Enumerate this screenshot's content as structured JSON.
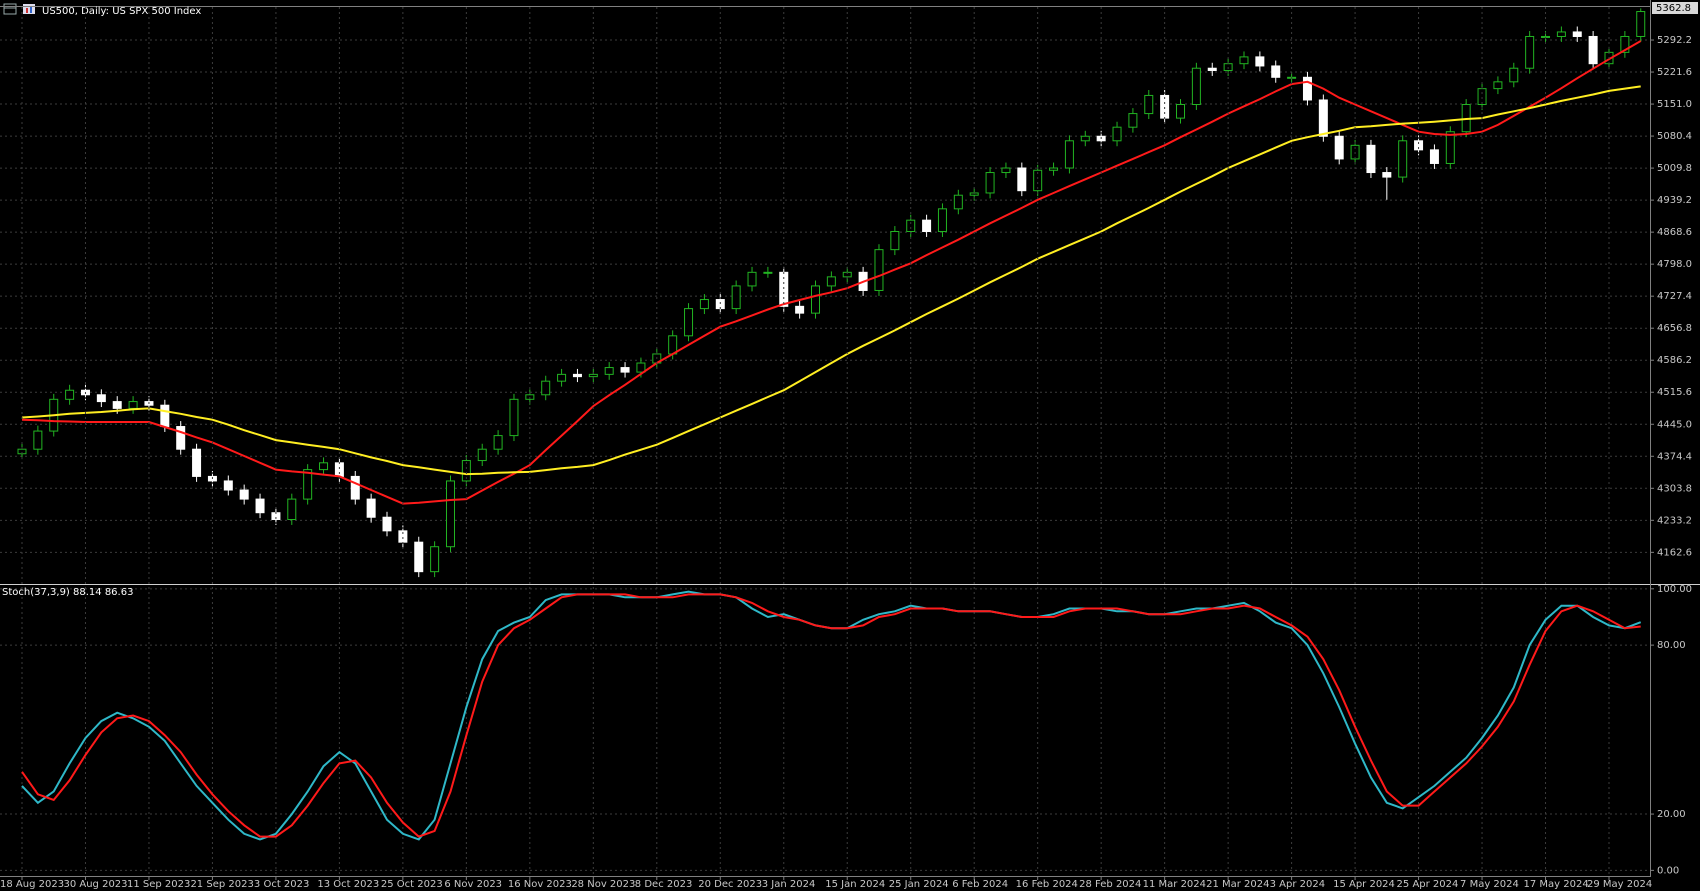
{
  "chart_data": [
    {
      "type": "candlestick",
      "title": "US500, Daily:  US SPX 500 Index",
      "grid": true,
      "up_color": "#22b422",
      "down_color": "#ffffff",
      "last_price": 5362.8,
      "ylim": [
        4095,
        5365
      ],
      "yticks": [
        4162.6,
        4233.2,
        4303.8,
        4374.4,
        {
          "value": 4445,
          "label": "4445.0"
        },
        4515.6,
        4586.2,
        4656.8,
        4727.4,
        {
          "value": 4798,
          "label": "4798.0"
        },
        4868.6,
        4939.2,
        5009.8,
        5080.4,
        {
          "value": 5151,
          "label": "5151.0"
        },
        5221.6,
        5292.2
      ],
      "open": [
        4380,
        4390,
        4430,
        4500,
        4520,
        4510,
        4495,
        4480,
        4495,
        4487,
        4440,
        4390,
        4330,
        4320,
        4300,
        4280,
        4250,
        4235,
        4280,
        4345,
        4360,
        4330,
        4280,
        4240,
        4210,
        4185,
        4120,
        4175,
        4320,
        4365,
        4390,
        4420,
        4500,
        4510,
        4540,
        4555,
        4550,
        4555,
        4570,
        4560,
        4580,
        4600,
        4640,
        4700,
        4720,
        4700,
        4750,
        4780,
        4780,
        4705,
        4690,
        4750,
        4770,
        4780,
        4740,
        4830,
        4870,
        4895,
        4870,
        4920,
        4950,
        4955,
        5000,
        5010,
        4960,
        5005,
        5010,
        5070,
        5080,
        5070,
        5100,
        5130,
        5170,
        5120,
        5150,
        5230,
        5225,
        5240,
        5255,
        5235,
        5210,
        5210,
        5160,
        5080,
        5030,
        5060,
        5000,
        4990,
        5070,
        5050,
        5020,
        5090,
        5150,
        5185,
        5200,
        5230,
        5300,
        5300,
        5310,
        5300,
        5240,
        5265,
        5300
      ],
      "high": [
        4402,
        4442,
        4512,
        4532,
        4532,
        4522,
        4507,
        4507,
        4507,
        4499,
        4452,
        4402,
        4342,
        4332,
        4312,
        4292,
        4262,
        4292,
        4357,
        4372,
        4372,
        4342,
        4292,
        4252,
        4222,
        4197,
        4187,
        4332,
        4377,
        4402,
        4432,
        4512,
        4522,
        4552,
        4567,
        4567,
        4567,
        4582,
        4582,
        4592,
        4612,
        4652,
        4712,
        4732,
        4732,
        4762,
        4792,
        4792,
        4792,
        4717,
        4762,
        4782,
        4792,
        4792,
        4842,
        4882,
        4907,
        4907,
        4932,
        4962,
        4967,
        5012,
        5022,
        5022,
        5017,
        5022,
        5082,
        5092,
        5092,
        5112,
        5142,
        5182,
        5182,
        5162,
        5242,
        5242,
        5252,
        5267,
        5267,
        5247,
        5222,
        5222,
        5172,
        5092,
        5072,
        5072,
        5012,
        5082,
        5082,
        5062,
        5102,
        5162,
        5197,
        5212,
        5242,
        5312,
        5312,
        5322,
        5322,
        5312,
        5277,
        5312,
        5362
      ],
      "low": [
        4368,
        4378,
        4418,
        4488,
        4498,
        4483,
        4468,
        4468,
        4475,
        4428,
        4378,
        4318,
        4308,
        4288,
        4268,
        4238,
        4223,
        4223,
        4268,
        4333,
        4318,
        4268,
        4228,
        4198,
        4173,
        4108,
        4108,
        4163,
        4308,
        4353,
        4378,
        4408,
        4488,
        4498,
        4528,
        4538,
        4538,
        4543,
        4548,
        4548,
        4568,
        4588,
        4628,
        4688,
        4688,
        4688,
        4738,
        4768,
        4693,
        4678,
        4678,
        4738,
        4758,
        4728,
        4728,
        4818,
        4858,
        4858,
        4858,
        4908,
        4938,
        4943,
        4988,
        4948,
        4948,
        4993,
        4998,
        5058,
        5058,
        5058,
        5088,
        5118,
        5108,
        5108,
        5138,
        5213,
        5213,
        5228,
        5223,
        5198,
        5198,
        5148,
        5068,
        5018,
        5018,
        4988,
        4940,
        4978,
        5038,
        5008,
        5008,
        5078,
        5138,
        5173,
        5188,
        5218,
        5288,
        5288,
        5288,
        5228,
        5228,
        5253,
        5288
      ],
      "close": [
        4390,
        4430,
        4500,
        4520,
        4510,
        4495,
        4480,
        4495,
        4487,
        4440,
        4390,
        4330,
        4320,
        4300,
        4280,
        4250,
        4235,
        4280,
        4345,
        4360,
        4330,
        4280,
        4240,
        4210,
        4185,
        4120,
        4175,
        4320,
        4365,
        4390,
        4420,
        4500,
        4510,
        4540,
        4555,
        4550,
        4555,
        4570,
        4560,
        4580,
        4600,
        4640,
        4700,
        4720,
        4700,
        4750,
        4780,
        4780,
        4705,
        4690,
        4750,
        4770,
        4780,
        4740,
        4830,
        4870,
        4895,
        4870,
        4920,
        4950,
        4955,
        5000,
        5010,
        4960,
        5005,
        5010,
        5070,
        5080,
        5070,
        5100,
        5130,
        5170,
        5120,
        5150,
        5230,
        5225,
        5240,
        5255,
        5235,
        5210,
        5210,
        5160,
        5080,
        5030,
        5060,
        5000,
        4990,
        5070,
        5050,
        5020,
        5090,
        5150,
        5185,
        5200,
        5230,
        5300,
        5300,
        5310,
        5300,
        5240,
        5265,
        5300,
        5355
      ],
      "series": [
        {
          "color": "#ff1a1a",
          "values": [
            4455,
            4454,
            4452,
            4451,
            4450,
            4450,
            4450,
            4450,
            4450,
            4439,
            4428,
            4416,
            4405,
            4390,
            4375,
            4360,
            4345,
            4341,
            4338,
            4334,
            4330,
            4315,
            4300,
            4285,
            4270,
            4272,
            4275,
            4278,
            4280,
            4299,
            4318,
            4336,
            4355,
            4388,
            4420,
            4452,
            4485,
            4509,
            4532,
            4556,
            4580,
            4600,
            4620,
            4640,
            4660,
            4672,
            4685,
            4698,
            4710,
            4719,
            4728,
            4736,
            4745,
            4759,
            4772,
            4786,
            4800,
            4818,
            4835,
            4852,
            4870,
            4888,
            4905,
            4922,
            4940,
            4955,
            4970,
            4985,
            5000,
            5015,
            5030,
            5045,
            5060,
            5078,
            5095,
            5112,
            5130,
            5146,
            5162,
            5179,
            5195,
            5200,
            5185,
            5165,
            5150,
            5135,
            5120,
            5105,
            5090,
            5085,
            5083,
            5085,
            5090,
            5105,
            5125,
            5145,
            5165,
            5186,
            5208,
            5229,
            5250,
            5270,
            5290
          ]
        },
        {
          "color": "#ffee22",
          "values": [
            4460,
            4462,
            4465,
            4468,
            4470,
            4472,
            4475,
            4478,
            4480,
            4474,
            4468,
            4461,
            4455,
            4444,
            4432,
            4421,
            4410,
            4405,
            4400,
            4395,
            4390,
            4381,
            4372,
            4364,
            4355,
            4350,
            4345,
            4340,
            4335,
            4336,
            4338,
            4339,
            4340,
            4344,
            4348,
            4351,
            4355,
            4366,
            4378,
            4389,
            4400,
            4415,
            4430,
            4445,
            4460,
            4475,
            4490,
            4505,
            4520,
            4540,
            4560,
            4580,
            4600,
            4618,
            4635,
            4652,
            4670,
            4688,
            4705,
            4722,
            4740,
            4758,
            4775,
            4792,
            4810,
            4825,
            4840,
            4855,
            4870,
            4888,
            4905,
            4922,
            4940,
            4958,
            4975,
            4992,
            5010,
            5025,
            5040,
            5055,
            5070,
            5078,
            5085,
            5092,
            5100,
            5102,
            5105,
            5108,
            5110,
            5112,
            5115,
            5118,
            5120,
            5128,
            5135,
            5142,
            5150,
            5158,
            5165,
            5172,
            5180,
            5185,
            5190
          ]
        }
      ]
    },
    {
      "type": "line",
      "title": "Stoch(37,3,9) 88.14 86.63",
      "grid": true,
      "ylim": [
        -2,
        101
      ],
      "yticks": [
        {
          "value": 100,
          "label": "100.00"
        },
        {
          "value": 80,
          "label": "80.00"
        },
        {
          "value": 20,
          "label": "20.00"
        },
        {
          "value": 0,
          "label": "0.00"
        }
      ],
      "categories": [
        "18 Aug 2023",
        null,
        null,
        null,
        "30 Aug 2023",
        null,
        null,
        null,
        "11 Sep 2023",
        null,
        null,
        null,
        "21 Sep 2023",
        null,
        null,
        null,
        "3 Oct 2023",
        null,
        null,
        null,
        "13 Oct 2023",
        null,
        null,
        null,
        "25 Oct 2023",
        null,
        null,
        null,
        "6 Nov 2023",
        null,
        null,
        null,
        "16 Nov 2023",
        null,
        null,
        null,
        "28 Nov 2023",
        null,
        null,
        null,
        "8 Dec 2023",
        null,
        null,
        null,
        "20 Dec 2023",
        null,
        null,
        null,
        "3 Jan 2024",
        null,
        null,
        null,
        "15 Jan 2024",
        null,
        null,
        null,
        "25 Jan 2024",
        null,
        null,
        null,
        "6 Feb 2024",
        null,
        null,
        null,
        "16 Feb 2024",
        null,
        null,
        null,
        "28 Feb 2024",
        null,
        null,
        null,
        "11 Mar 2024",
        null,
        null,
        null,
        "21 Mar 2024",
        null,
        null,
        null,
        "3 Apr 2024",
        null,
        null,
        null,
        "15 Apr 2024",
        null,
        null,
        null,
        "25 Apr 2024",
        null,
        null,
        null,
        "7 May 2024",
        null,
        null,
        null,
        "17 May 2024",
        null,
        null,
        null,
        "29 May 2024",
        null,
        null
      ],
      "series": [
        {
          "color": "#2fb8c8",
          "values": [
            30,
            24,
            28,
            38,
            47,
            53,
            56,
            54,
            51,
            46,
            38,
            30,
            24,
            18,
            13,
            11,
            13,
            20,
            28,
            37,
            42,
            38,
            28,
            18,
            13,
            11,
            18,
            38,
            58,
            75,
            85,
            88,
            90,
            96,
            98,
            98,
            98,
            98,
            97,
            97,
            97,
            98,
            99,
            98,
            98,
            97,
            93,
            90,
            91,
            89,
            87,
            86,
            86,
            89,
            91,
            92,
            94,
            93,
            93,
            92,
            92,
            92,
            91,
            90,
            90,
            91,
            93,
            93,
            93,
            92,
            92,
            91,
            91,
            92,
            93,
            93,
            94,
            95,
            92,
            88,
            86,
            80,
            70,
            58,
            45,
            33,
            24,
            22,
            26,
            30,
            35,
            40,
            47,
            55,
            65,
            80,
            89,
            94,
            94,
            90,
            87,
            86,
            88.14
          ]
        },
        {
          "color": "#ff1a1a",
          "values": [
            35,
            27,
            25,
            32,
            41,
            49,
            54,
            55,
            53,
            48,
            42,
            34,
            27,
            21,
            16,
            12,
            12,
            16,
            23,
            31,
            38,
            39,
            33,
            24,
            17,
            12,
            14,
            28,
            48,
            67,
            80,
            86,
            89,
            93,
            97,
            98,
            98,
            98,
            98,
            97,
            97,
            97,
            98,
            98,
            98,
            97,
            95,
            92,
            90,
            89,
            87,
            86,
            86,
            87,
            90,
            91,
            93,
            93,
            93,
            92,
            92,
            92,
            91,
            90,
            90,
            90,
            92,
            93,
            93,
            93,
            92,
            91,
            91,
            91,
            92,
            93,
            93,
            94,
            93,
            90,
            87,
            83,
            75,
            64,
            51,
            39,
            28,
            23,
            23,
            28,
            33,
            38,
            44,
            51,
            60,
            73,
            85,
            92,
            94,
            92,
            89,
            86,
            86.63
          ]
        }
      ]
    }
  ]
}
